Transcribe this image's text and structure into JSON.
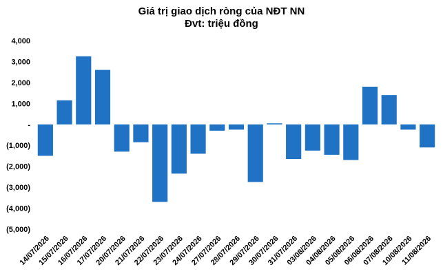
{
  "chart_data": {
    "type": "bar",
    "title": "Giá trị giao dịch ròng của NĐT NN",
    "subtitle": "Đvt: triệu đồng",
    "xlabel": "",
    "ylabel": "",
    "ylim": [
      -5000,
      4000
    ],
    "yticks": [
      4000,
      3000,
      2000,
      1000,
      0,
      -1000,
      -2000,
      -3000,
      -4000,
      -5000
    ],
    "ytick_labels": [
      "4,000",
      "3,000",
      "2,000",
      "1,000",
      "-",
      "(1,000)",
      "(2,000)",
      "(3,000)",
      "(4,000)",
      "(5,000)"
    ],
    "grid": false,
    "legend": "none",
    "bar_color": "#1f72c4",
    "categories": [
      "14/07/2026",
      "15/07/2026",
      "16/07/2026",
      "17/07/2026",
      "20/07/2026",
      "21/07/2026",
      "22/07/2026",
      "23/07/2026",
      "24/07/2026",
      "27/07/2026",
      "28/07/2026",
      "29/07/2026",
      "30/07/2026",
      "31/07/2026",
      "03/08/2026",
      "04/08/2026",
      "05/08/2026",
      "06/08/2026",
      "07/08/2026",
      "10/08/2026",
      "11/08/2026"
    ],
    "values": [
      -1500,
      1150,
      3250,
      2600,
      -1300,
      -850,
      -3700,
      -2350,
      -1400,
      -300,
      -250,
      -2750,
      50,
      -1650,
      -1250,
      -1450,
      -1700,
      1800,
      1400,
      -250,
      -1100
    ]
  }
}
